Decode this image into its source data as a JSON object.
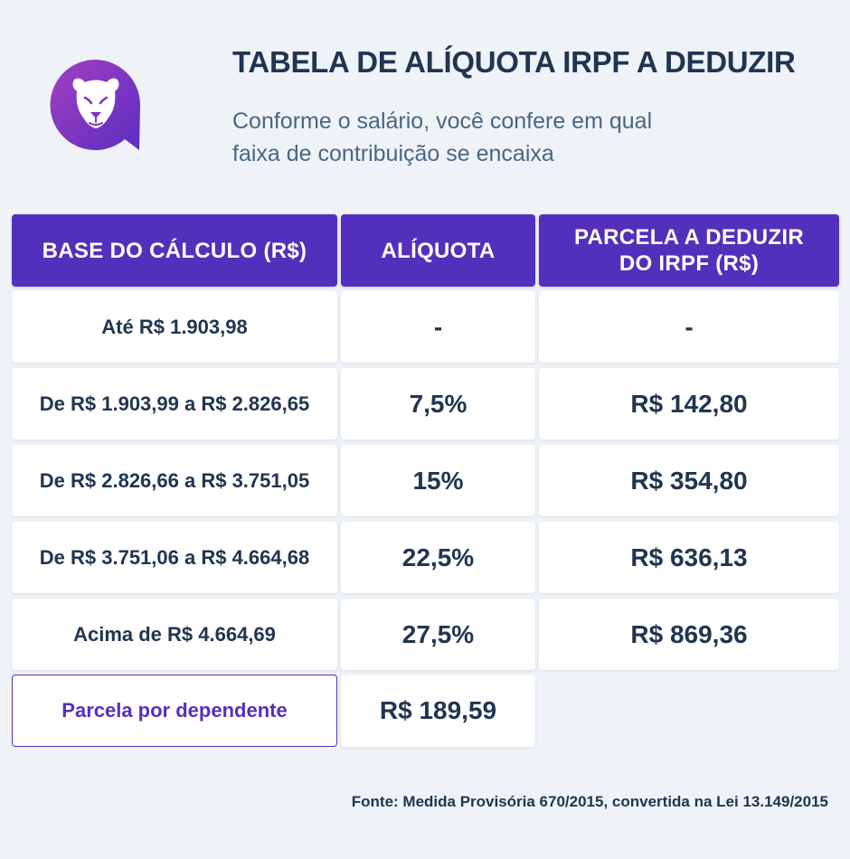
{
  "header": {
    "title": "TABELA DE ALÍQUOTA IRPF A DEDUZIR",
    "subtitle_line1": "Conforme o salário, você confere em qual",
    "subtitle_line2": "faixa de contribuição se encaixa"
  },
  "logo": {
    "icon": "lion-face-chat-bubble-icon",
    "gradient_start": "#9b3fc0",
    "gradient_end": "#5a2ec2"
  },
  "table": {
    "columns": [
      "BASE DO CÁLCULO (R$)",
      "ALÍQUOTA",
      "PARCELA A DEDUZIR DO IRPF (R$)"
    ],
    "column3_line1": "PARCELA A DEDUZIR",
    "column3_line2": "DO IRPF (R$)",
    "rows": [
      {
        "base": "Até R$ 1.903,98",
        "aliquota": "-",
        "parcela": "-"
      },
      {
        "base": "De R$ 1.903,99 a R$ 2.826,65",
        "aliquota": "7,5%",
        "parcela": "R$ 142,80"
      },
      {
        "base": "De R$ 2.826,66 a R$ 3.751,05",
        "aliquota": "15%",
        "parcela": "R$ 354,80"
      },
      {
        "base": "De R$ 3.751,06 a R$ 4.664,68",
        "aliquota": "22,5%",
        "parcela": "R$ 636,13"
      },
      {
        "base": "Acima de R$ 4.664,69",
        "aliquota": "27,5%",
        "parcela": "R$ 869,36"
      }
    ],
    "dependente": {
      "label": "Parcela por dependente",
      "value": "R$ 189,59"
    }
  },
  "footer": {
    "source": "Fonte: Medida Provisória 670/2015, convertida na Lei 13.149/2015"
  },
  "colors": {
    "accent": "#5330bb",
    "text": "#213550",
    "subtitle": "#4a6585",
    "background": "#eff3f8"
  }
}
